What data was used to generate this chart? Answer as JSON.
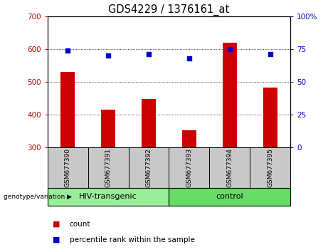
{
  "title": "GDS4229 / 1376161_at",
  "samples": [
    "GSM677390",
    "GSM677391",
    "GSM677392",
    "GSM677393",
    "GSM677394",
    "GSM677395"
  ],
  "counts": [
    530,
    415,
    447,
    353,
    620,
    483
  ],
  "percentile_ranks": [
    74,
    70,
    71,
    68,
    75,
    71
  ],
  "ylim_left": [
    300,
    700
  ],
  "ylim_right": [
    0,
    100
  ],
  "yticks_left": [
    300,
    400,
    500,
    600,
    700
  ],
  "yticks_right": [
    0,
    25,
    50,
    75,
    100
  ],
  "bar_color": "#cc0000",
  "dot_color": "#0000cc",
  "grid_color": "#000000",
  "groups": [
    {
      "label": "HIV-transgenic",
      "start": 0,
      "end": 3,
      "color": "#99ee99"
    },
    {
      "label": "control",
      "start": 3,
      "end": 6,
      "color": "#66dd66"
    }
  ],
  "group_label_prefix": "genotype/variation",
  "legend_count_label": "count",
  "legend_percentile_label": "percentile rank within the sample",
  "sample_label_bg": "#c8c8c8",
  "bar_width": 0.35,
  "title_fontsize": 10.5,
  "tick_fontsize": 7.5,
  "sample_fontsize": 6.5,
  "group_fontsize": 8,
  "legend_fontsize": 7.5
}
